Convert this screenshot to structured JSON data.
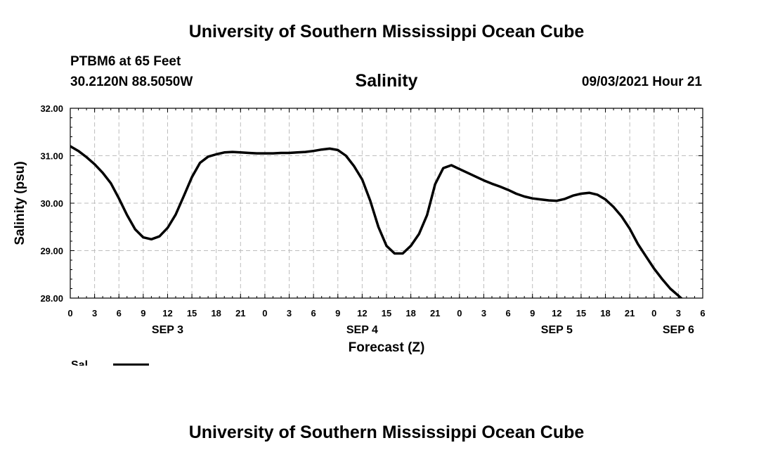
{
  "header": {
    "title": "University of Southern Mississippi Ocean Cube",
    "station": "PTBM6 at 65 Feet",
    "coords": "30.2120N  88.5050W",
    "timestamp": "09/03/2021 Hour 21"
  },
  "footer": {
    "title": "University of Southern Mississippi Ocean Cube"
  },
  "chart_data": {
    "type": "line",
    "title": "Salinity",
    "xlabel": "Forecast (Z)",
    "ylabel": "Salinity (psu)",
    "xlim": [
      0,
      78
    ],
    "ylim": [
      28.0,
      32.0
    ],
    "y_ticks": [
      "28.00",
      "29.00",
      "30.00",
      "31.00",
      "32.00"
    ],
    "x_tick_labels": [
      "0",
      "3",
      "6",
      "9",
      "12",
      "15",
      "18",
      "21",
      "0",
      "3",
      "6",
      "9",
      "12",
      "15",
      "18",
      "21",
      "0",
      "3",
      "6",
      "9",
      "12",
      "15",
      "18",
      "21",
      "0",
      "3",
      "6"
    ],
    "date_labels": [
      {
        "label": "SEP 3",
        "hour": 12
      },
      {
        "label": "SEP 4",
        "hour": 36
      },
      {
        "label": "SEP 5",
        "hour": 60
      },
      {
        "label": "SEP 6",
        "hour": 75
      }
    ],
    "grid": true,
    "legend": [
      {
        "name": "Sal",
        "color": "#000000"
      }
    ],
    "series": [
      {
        "name": "Sal",
        "color": "#000000",
        "x": [
          0,
          1,
          2,
          3,
          4,
          5,
          6,
          7,
          8,
          9,
          10,
          11,
          12,
          13,
          14,
          15,
          16,
          17,
          18,
          19,
          20,
          21,
          22,
          23,
          24,
          25,
          26,
          27,
          28,
          29,
          30,
          31,
          32,
          33,
          34,
          35,
          36,
          37,
          38,
          39,
          40,
          41,
          42,
          43,
          44,
          45,
          46,
          47,
          48,
          49,
          50,
          51,
          52,
          53,
          54,
          55,
          56,
          57,
          58,
          59,
          60,
          61,
          62,
          63,
          64,
          65,
          66,
          67,
          68,
          69,
          70,
          71,
          72,
          73,
          74,
          75,
          76,
          77,
          78
        ],
        "values": [
          31.2,
          31.1,
          30.97,
          30.82,
          30.64,
          30.42,
          30.1,
          29.75,
          29.45,
          29.28,
          29.24,
          29.3,
          29.48,
          29.76,
          30.15,
          30.55,
          30.85,
          30.98,
          31.03,
          31.07,
          31.08,
          31.07,
          31.06,
          31.05,
          31.05,
          31.05,
          31.06,
          31.06,
          31.07,
          31.08,
          31.1,
          31.13,
          31.15,
          31.12,
          31.0,
          30.78,
          30.5,
          30.05,
          29.5,
          29.1,
          28.94,
          28.94,
          29.1,
          29.35,
          29.75,
          30.4,
          30.74,
          30.8,
          30.72,
          30.64,
          30.56,
          30.48,
          30.41,
          30.35,
          30.28,
          30.2,
          30.14,
          30.1,
          30.08,
          30.06,
          30.05,
          30.09,
          30.16,
          30.2,
          30.22,
          30.18,
          30.08,
          29.92,
          29.72,
          29.46,
          29.14,
          28.88,
          28.62,
          28.4,
          28.2,
          28.05,
          27.9,
          27.8,
          27.7
        ]
      }
    ]
  }
}
